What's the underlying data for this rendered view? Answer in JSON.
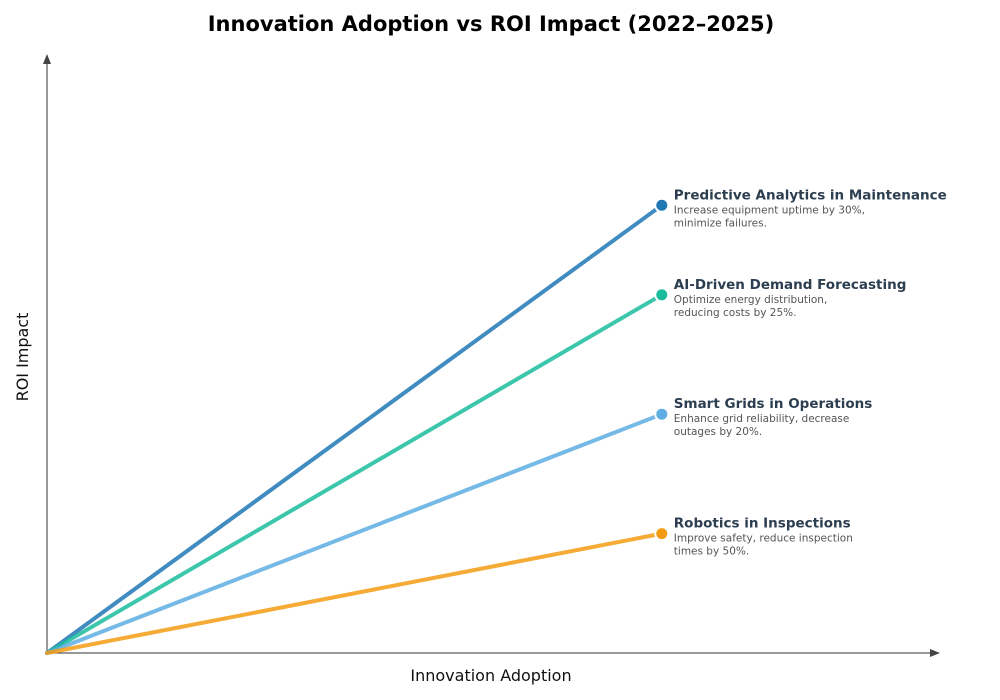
{
  "chart_data": {
    "type": "line",
    "title": "Innovation Adoption vs ROI Impact (2022–2025)",
    "xlabel": "Innovation Adoption",
    "ylabel": "ROI Impact",
    "xlim": [
      0,
      1
    ],
    "ylim": [
      0,
      1
    ],
    "grid": false,
    "legend": "none",
    "series": [
      {
        "name": "Predictive Analytics in Maintenance",
        "description_lines": [
          "Increase equipment uptime by 30%,",
          "minimize failures."
        ],
        "color": "#1f77b4",
        "x": [
          0,
          0.69
        ],
        "y": [
          0,
          0.75
        ]
      },
      {
        "name": "AI-Driven Demand Forecasting",
        "description_lines": [
          "Optimize energy distribution,",
          "reducing costs by 25%."
        ],
        "color": "#1abc9c",
        "x": [
          0,
          0.69
        ],
        "y": [
          0,
          0.6
        ]
      },
      {
        "name": "Smart Grids in Operations",
        "description_lines": [
          "Enhance grid reliability, decrease",
          "outages by 20%."
        ],
        "color": "#5dade2",
        "x": [
          0,
          0.69
        ],
        "y": [
          0,
          0.4
        ]
      },
      {
        "name": "Robotics in Inspections",
        "description_lines": [
          "Improve safety, reduce inspection",
          "times by 50%."
        ],
        "color": "#f39c12",
        "x": [
          0,
          0.69
        ],
        "y": [
          0,
          0.2
        ]
      }
    ]
  }
}
